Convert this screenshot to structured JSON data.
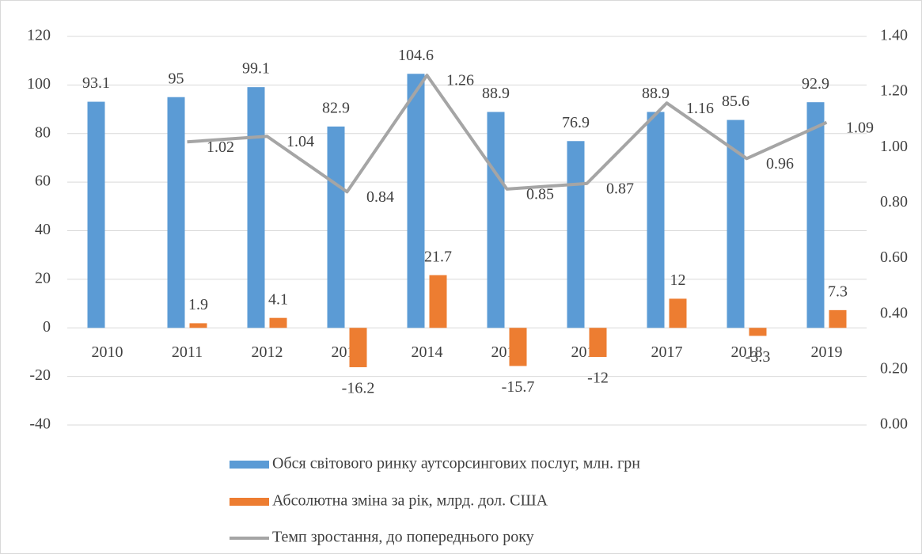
{
  "chart_data": {
    "type": "bar_line",
    "categories": [
      "2010",
      "2011",
      "2012",
      "2013",
      "2014",
      "2015",
      "2016",
      "2017",
      "2018",
      "2019"
    ],
    "series": [
      {
        "name": "Обся світового ринку аутсорсингових послуг, млн. грн",
        "color": "#5b9bd5",
        "type": "bar",
        "values": [
          93.1,
          95,
          99.1,
          82.9,
          104.6,
          88.9,
          76.9,
          88.9,
          85.6,
          92.9
        ]
      },
      {
        "name": "Абсолютна зміна за рік, млрд. дол. США",
        "color": "#ed7d31",
        "type": "bar",
        "values": [
          null,
          1.9,
          4.1,
          -16.2,
          21.7,
          -15.7,
          -12,
          12,
          -3.3,
          7.3
        ]
      },
      {
        "name": "Темп зростання, до попереднього року",
        "color": "#a5a5a5",
        "type": "line",
        "axis": "y2",
        "values": [
          null,
          1.02,
          1.04,
          0.84,
          1.26,
          0.85,
          0.87,
          1.16,
          0.96,
          1.09
        ]
      }
    ],
    "ylim": [
      -40,
      120
    ],
    "yticks": [
      -40,
      -20,
      0,
      20,
      40,
      60,
      80,
      100,
      120
    ],
    "y2lim": [
      0,
      1.4
    ],
    "y2ticks": [
      {
        "value": 0,
        "label": "0.00"
      },
      {
        "value": 0.2,
        "label": "0.20"
      },
      {
        "value": 0.4,
        "label": "0.40"
      },
      {
        "value": 0.6,
        "label": "0.60"
      },
      {
        "value": 0.8,
        "label": "0.80"
      },
      {
        "value": 1,
        "label": "1.00"
      },
      {
        "value": 1.2,
        "label": "1.20"
      },
      {
        "value": 1.4,
        "label": "1.40"
      }
    ],
    "grid": true,
    "legend": "bottom"
  }
}
